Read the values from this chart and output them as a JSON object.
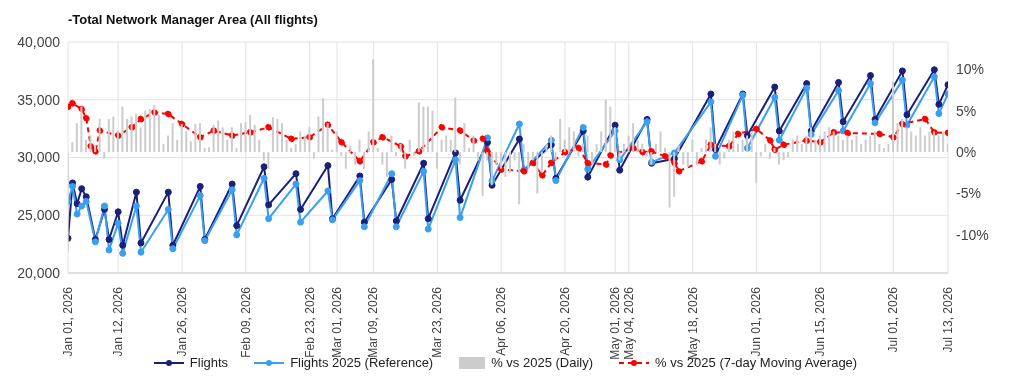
{
  "chart_data": {
    "type": "line",
    "title": "-Total Network Manager Area (All flights)",
    "x": [
      "2026-01-01",
      "2026-01-02",
      "2026-01-03",
      "2026-01-04",
      "2026-01-05",
      "2026-01-06",
      "2026-01-07",
      "2026-01-08",
      "2026-01-09",
      "2026-01-10",
      "2026-01-11",
      "2026-01-12",
      "2026-01-13",
      "2026-01-14",
      "2026-01-15",
      "2026-01-16",
      "2026-01-17",
      "2026-01-18",
      "2026-01-19",
      "2026-01-20",
      "2026-01-21",
      "2026-01-22",
      "2026-01-23",
      "2026-01-24",
      "2026-01-25",
      "2026-01-26",
      "2026-01-27",
      "2026-01-28",
      "2026-01-29",
      "2026-01-30",
      "2026-01-31",
      "2026-02-01",
      "2026-02-02",
      "2026-02-03",
      "2026-02-04",
      "2026-02-05",
      "2026-02-06",
      "2026-02-07",
      "2026-02-08",
      "2026-02-09",
      "2026-02-10",
      "2026-02-11",
      "2026-02-12",
      "2026-02-13",
      "2026-02-14",
      "2026-02-15",
      "2026-02-16",
      "2026-02-17",
      "2026-02-18",
      "2026-02-19",
      "2026-02-20",
      "2026-02-21",
      "2026-02-22",
      "2026-02-23",
      "2026-02-24",
      "2026-02-25",
      "2026-02-26",
      "2026-02-27",
      "2026-02-28",
      "2026-03-01",
      "2026-03-02",
      "2026-03-03",
      "2026-03-04",
      "2026-03-05",
      "2026-03-06",
      "2026-03-07",
      "2026-03-08",
      "2026-03-09",
      "2026-03-10",
      "2026-03-11",
      "2026-03-12",
      "2026-03-13",
      "2026-03-14",
      "2026-03-15",
      "2026-03-16",
      "2026-03-17",
      "2026-03-18",
      "2026-03-19",
      "2026-03-20",
      "2026-03-21",
      "2026-03-22",
      "2026-03-23",
      "2026-03-24",
      "2026-03-25",
      "2026-03-26",
      "2026-03-27",
      "2026-03-28",
      "2026-03-29",
      "2026-03-30",
      "2026-03-31",
      "2026-04-01",
      "2026-04-02",
      "2026-04-03",
      "2026-04-04",
      "2026-04-05",
      "2026-04-06",
      "2026-04-07",
      "2026-04-08",
      "2026-04-09",
      "2026-04-10",
      "2026-04-11",
      "2026-04-12",
      "2026-04-13",
      "2026-04-14",
      "2026-04-15",
      "2026-04-16",
      "2026-04-17",
      "2026-04-18",
      "2026-04-19",
      "2026-04-20",
      "2026-04-21",
      "2026-04-22",
      "2026-04-23",
      "2026-04-24",
      "2026-04-25",
      "2026-04-26",
      "2026-04-27",
      "2026-04-28",
      "2026-04-29",
      "2026-04-30",
      "2026-05-01",
      "2026-05-02",
      "2026-05-03",
      "2026-05-04",
      "2026-05-05",
      "2026-05-06",
      "2026-05-07",
      "2026-05-08",
      "2026-05-09",
      "2026-05-10",
      "2026-05-11",
      "2026-05-12",
      "2026-05-13",
      "2026-05-14",
      "2026-05-15",
      "2026-05-16",
      "2026-05-17",
      "2026-05-18",
      "2026-05-19",
      "2026-05-20",
      "2026-05-21",
      "2026-05-22",
      "2026-05-23",
      "2026-05-24",
      "2026-05-25",
      "2026-05-26",
      "2026-05-27",
      "2026-05-28",
      "2026-05-29",
      "2026-05-30",
      "2026-05-31",
      "2026-06-01",
      "2026-06-02",
      "2026-06-03",
      "2026-06-04",
      "2026-06-05",
      "2026-06-06",
      "2026-06-07",
      "2026-06-08",
      "2026-06-09",
      "2026-06-10",
      "2026-06-11",
      "2026-06-12",
      "2026-06-13",
      "2026-06-14",
      "2026-06-15",
      "2026-06-16",
      "2026-06-17",
      "2026-06-18",
      "2026-06-19",
      "2026-06-20",
      "2026-06-21",
      "2026-06-22",
      "2026-06-23",
      "2026-06-24",
      "2026-06-25",
      "2026-06-26",
      "2026-06-27",
      "2026-06-28",
      "2026-06-29",
      "2026-06-30",
      "2026-07-01",
      "2026-07-02",
      "2026-07-03",
      "2026-07-04",
      "2026-07-05",
      "2026-07-06",
      "2026-07-07",
      "2026-07-08",
      "2026-07-09",
      "2026-07-10",
      "2026-07-11",
      "2026-07-12",
      "2026-07-13"
    ],
    "series": [
      {
        "name": "Flights",
        "color": "#1a1f7a",
        "x": [
          "2026-01-01",
          "2026-01-02",
          "2026-01-03",
          "2026-01-04",
          "2026-01-05",
          "2026-01-07",
          "2026-01-09",
          "2026-01-10",
          "2026-01-12",
          "2026-01-13",
          "2026-01-16",
          "2026-01-17",
          "2026-01-23",
          "2026-01-24",
          "2026-01-30",
          "2026-01-31",
          "2026-02-06",
          "2026-02-07",
          "2026-02-13",
          "2026-02-14",
          "2026-02-20",
          "2026-02-21",
          "2026-02-27",
          "2026-02-28",
          "2026-03-06",
          "2026-03-07",
          "2026-03-13",
          "2026-03-14",
          "2026-03-20",
          "2026-03-21",
          "2026-03-27",
          "2026-03-28",
          "2026-04-03",
          "2026-04-04",
          "2026-04-10",
          "2026-04-11",
          "2026-04-17",
          "2026-04-18",
          "2026-04-24",
          "2026-04-25",
          "2026-05-01",
          "2026-05-02",
          "2026-05-08",
          "2026-05-09",
          "2026-05-14",
          "2026-05-22",
          "2026-05-23",
          "2026-05-29",
          "2026-05-30",
          "2026-06-05",
          "2026-06-06",
          "2026-06-12",
          "2026-06-13",
          "2026-06-19",
          "2026-06-20",
          "2026-06-26",
          "2026-06-27",
          "2026-07-03",
          "2026-07-04",
          "2026-07-10",
          "2026-07-11",
          "2026-07-13"
        ],
        "values": [
          23000,
          27800,
          26000,
          27300,
          26600,
          22900,
          25500,
          22900,
          25300,
          22400,
          27000,
          22600,
          27000,
          22400,
          27500,
          22900,
          27700,
          24100,
          29200,
          25900,
          28600,
          25500,
          29300,
          24700,
          28400,
          24400,
          28100,
          24500,
          29500,
          24700,
          30400,
          26300,
          31300,
          27600,
          31600,
          28900,
          31100,
          28200,
          32300,
          28300,
          32800,
          28900,
          33300,
          29500,
          29900,
          35500,
          30700,
          35500,
          31900,
          36100,
          32300,
          36400,
          32300,
          36500,
          33100,
          37100,
          33300,
          37500,
          33700,
          37600,
          34600,
          36300
        ]
      },
      {
        "name": "Flights 2025 (Reference)",
        "color": "#3a9ff0",
        "x": [
          "2026-01-01",
          "2026-01-02",
          "2026-01-03",
          "2026-01-04",
          "2026-01-05",
          "2026-01-07",
          "2026-01-09",
          "2026-01-10",
          "2026-01-12",
          "2026-01-13",
          "2026-01-16",
          "2026-01-17",
          "2026-01-23",
          "2026-01-24",
          "2026-01-30",
          "2026-01-31",
          "2026-02-06",
          "2026-02-07",
          "2026-02-13",
          "2026-02-14",
          "2026-02-20",
          "2026-02-21",
          "2026-02-27",
          "2026-02-28",
          "2026-03-06",
          "2026-03-07",
          "2026-03-13",
          "2026-03-14",
          "2026-03-20",
          "2026-03-21",
          "2026-03-27",
          "2026-03-28",
          "2026-04-03",
          "2026-04-04",
          "2026-04-10",
          "2026-04-11",
          "2026-04-17",
          "2026-04-18",
          "2026-04-24",
          "2026-04-25",
          "2026-05-01",
          "2026-05-02",
          "2026-05-08",
          "2026-05-09",
          "2026-05-14",
          "2026-05-22",
          "2026-05-23",
          "2026-05-29",
          "2026-05-30",
          "2026-06-05",
          "2026-06-06",
          "2026-06-12",
          "2026-06-13",
          "2026-06-19",
          "2026-06-20",
          "2026-06-26",
          "2026-06-27",
          "2026-07-03",
          "2026-07-04",
          "2026-07-10",
          "2026-07-11",
          "2026-07-13"
        ],
        "values": [
          26200,
          27500,
          25100,
          25800,
          26200,
          22700,
          25800,
          22000,
          24300,
          21700,
          25800,
          21800,
          25500,
          22100,
          26700,
          22800,
          27200,
          23300,
          28200,
          24700,
          27700,
          24400,
          27100,
          24600,
          28000,
          24000,
          28600,
          24000,
          28800,
          23800,
          29800,
          24800,
          31700,
          28000,
          32900,
          28900,
          31500,
          28000,
          32600,
          29000,
          32300,
          29800,
          33100,
          29600,
          30400,
          34800,
          30100,
          35400,
          30800,
          35200,
          31500,
          36000,
          32000,
          35800,
          32300,
          36400,
          33000,
          36700,
          32800,
          37000,
          33800,
          35500
        ]
      },
      {
        "name": "% vs 2025 (Daily)",
        "type": "bar",
        "axis": "y2",
        "color": "#cccccc",
        "values": [
          -12,
          1.2,
          3.5,
          5.5,
          1.5,
          2.0,
          0.8,
          4.0,
          -0.8,
          4.0,
          4.3,
          2.6,
          5.5,
          4.0,
          4.3,
          4.6,
          3.0,
          5.0,
          5.2,
          5.7,
          4.5,
          1.0,
          2.0,
          3.5,
          1.5,
          3.4,
          2.5,
          1.3,
          3.4,
          3.5,
          0.5,
          0.6,
          3.3,
          3.8,
          3.0,
          1.5,
          3.0,
          0.5,
          3.5,
          3.6,
          4.5,
          3.3,
          1.5,
          -1.0,
          -2.0,
          4.2,
          4.0,
          3.5,
          1.5,
          0.5,
          1.0,
          2.5,
          2.0,
          3.0,
          -0.8,
          4.3,
          6.5,
          3.5,
          0.3,
          2.5,
          -0.5,
          -2.0,
          0.8,
          -1.5,
          1.5,
          -2.0,
          2.5,
          11.2,
          0.5,
          -1.5,
          -3.0,
          2.0,
          -0.5,
          1.0,
          -2.0,
          1.5,
          -0.5,
          6.0,
          5.5,
          5.5,
          5.0,
          -2.0,
          1.5,
          2.0,
          1.5,
          6.6,
          -1.5,
          3.5,
          0.5,
          2.0,
          -1.0,
          -5.3,
          -1.0,
          -4.0,
          -1.5,
          -2.0,
          -3.0,
          -2.5,
          -1.0,
          -6.3,
          1.0,
          -2.0,
          -1.0,
          -5.0,
          -2.5,
          1.0,
          2.0,
          -1.0,
          4.0,
          1.5,
          3.0,
          2.5,
          -0.5,
          1.0,
          2.0,
          -1.5,
          1.0,
          2.5,
          6.3,
          5.5,
          3.0,
          -1.0,
          1.0,
          2.0,
          3.5,
          1.5,
          1.0,
          -0.5,
          -1.5,
          1.0,
          2.5,
          0.5,
          -6.7,
          -5.4,
          0.8,
          -1.5,
          -1.8,
          1.5,
          -1.5,
          0.5,
          1.5,
          3.0,
          1.0,
          -1.5,
          -0.8,
          1.5,
          2.5,
          1.0,
          1.5,
          2.0,
          2.5,
          -3.7,
          -0.5,
          1.0,
          -0.8,
          0.5,
          -1.5,
          -1.0,
          -0.6,
          1.5,
          2.0,
          1.0,
          2.0,
          3.0,
          1.5,
          2.0,
          2.5,
          3.0,
          2.5,
          2.0,
          1.5,
          2.0,
          1.5,
          2.0,
          1.0,
          1.5,
          2.0,
          2.5,
          1.0,
          0.5,
          1.0,
          8.5,
          3.5,
          4.0,
          3.0,
          2.5,
          2.0,
          3.0,
          2.0,
          2.5,
          2.5,
          2.0,
          2.5,
          1.0
        ]
      },
      {
        "name": "% vs 2025 (7-day Moving Average)",
        "axis": "y2",
        "color": "#ff0000",
        "line_style": "dashed",
        "x": [
          "2026-01-01",
          "2026-01-02",
          "2026-01-04",
          "2026-01-05",
          "2026-01-06",
          "2026-01-07",
          "2026-01-08",
          "2026-01-12",
          "2026-01-15",
          "2026-01-17",
          "2026-01-20",
          "2026-01-23",
          "2026-01-26",
          "2026-01-30",
          "2026-02-02",
          "2026-02-06",
          "2026-02-10",
          "2026-02-14",
          "2026-02-19",
          "2026-02-23",
          "2026-02-27",
          "2026-03-02",
          "2026-03-06",
          "2026-03-09",
          "2026-03-11",
          "2026-03-15",
          "2026-03-16",
          "2026-03-19",
          "2026-03-24",
          "2026-03-28",
          "2026-03-31",
          "2026-04-02",
          "2026-04-03",
          "2026-04-06",
          "2026-04-11",
          "2026-04-13",
          "2026-04-15",
          "2026-04-17",
          "2026-04-20",
          "2026-04-23",
          "2026-04-25",
          "2026-04-29",
          "2026-04-30",
          "2026-05-05",
          "2026-05-07",
          "2026-05-09",
          "2026-05-12",
          "2026-05-14",
          "2026-05-15",
          "2026-05-20",
          "2026-05-22",
          "2026-05-26",
          "2026-05-28",
          "2026-06-01",
          "2026-06-04",
          "2026-06-05",
          "2026-06-07",
          "2026-06-12",
          "2026-06-15",
          "2026-06-18",
          "2026-06-21",
          "2026-06-28",
          "2026-07-01",
          "2026-07-03",
          "2026-07-08",
          "2026-07-10",
          "2026-07-13"
        ],
        "values": [
          5.5,
          5.9,
          5.2,
          4.1,
          0.7,
          0.1,
          2.6,
          2.0,
          3.0,
          4.0,
          4.8,
          4.6,
          3.4,
          1.8,
          2.6,
          2.0,
          2.4,
          3.0,
          1.6,
          1.8,
          3.3,
          1.2,
          -1.1,
          1.2,
          1.8,
          0.7,
          -0.5,
          0.1,
          3.0,
          2.6,
          1.4,
          1.6,
          0.1,
          -2.1,
          -2.3,
          -1.3,
          -2.8,
          -1.3,
          0,
          0.5,
          -1.3,
          -1.5,
          -0.4,
          0.5,
          0,
          0.1,
          -0.5,
          -1.3,
          -2.3,
          -1.1,
          0.9,
          0.7,
          2.2,
          2.8,
          1.4,
          0.3,
          0.9,
          1.4,
          1.2,
          2.4,
          2.3,
          2.2,
          1.8,
          3.4,
          4.0,
          2.4,
          2.3
        ]
      }
    ],
    "xlim": [
      "2026-01-01",
      "2026-07-13"
    ],
    "xticks": [
      {
        "value": "2026-01-01",
        "label": "Jan 01, 2026"
      },
      {
        "value": "2026-01-12",
        "label": "Jan 12, 2026"
      },
      {
        "value": "2026-01-26",
        "label": "Jan 26, 2026"
      },
      {
        "value": "2026-02-09",
        "label": "Feb 09, 2026"
      },
      {
        "value": "2026-02-23",
        "label": "Feb 23, 2026"
      },
      {
        "value": "2026-03-01",
        "label": "Mar 01, 2026"
      },
      {
        "value": "2026-03-09",
        "label": "Mar 09, 2026"
      },
      {
        "value": "2026-03-23",
        "label": "Mar 23, 2026"
      },
      {
        "value": "2026-04-06",
        "label": "Apr 06, 2026"
      },
      {
        "value": "2026-04-20",
        "label": "Apr 20, 2026"
      },
      {
        "value": "2026-05-01",
        "label": "May 01, 2026"
      },
      {
        "value": "2026-05-04",
        "label": "May 04, 2026"
      },
      {
        "value": "2026-05-18",
        "label": "May 18, 2026"
      },
      {
        "value": "2026-06-01",
        "label": "Jun 01, 2026"
      },
      {
        "value": "2026-06-15",
        "label": "Jun 15, 2026"
      },
      {
        "value": "2026-07-01",
        "label": "Jul 01, 2026"
      },
      {
        "value": "2026-07-13",
        "label": "Jul 13, 2026"
      }
    ],
    "ylim": [
      20000,
      40000
    ],
    "yticks": [
      {
        "value": 20000,
        "label": "20,000"
      },
      {
        "value": 25000,
        "label": "25,000"
      },
      {
        "value": 30000,
        "label": "30,000"
      },
      {
        "value": 35000,
        "label": "35,000"
      },
      {
        "value": 40000,
        "label": "40,000"
      }
    ],
    "y2lim": [
      -14.6,
      13.3
    ],
    "y2ticks": [
      {
        "value": -10,
        "label": "-10%"
      },
      {
        "value": -5,
        "label": "-5%"
      },
      {
        "value": 0,
        "label": "0%"
      },
      {
        "value": 5,
        "label": "5%"
      },
      {
        "value": 10,
        "label": "10%"
      }
    ],
    "grid": true,
    "legend": "bottom",
    "marker": "circle"
  }
}
